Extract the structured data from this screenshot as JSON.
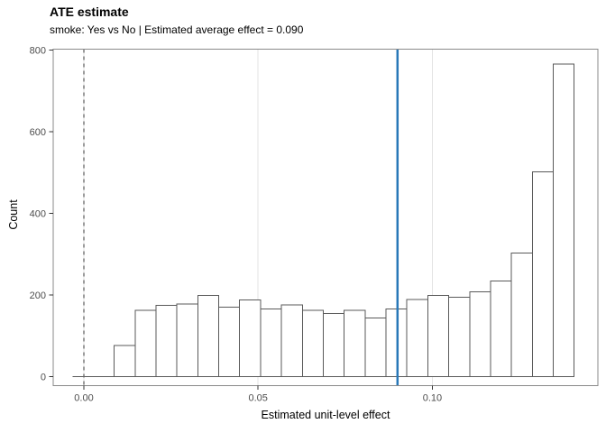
{
  "chart_data": {
    "type": "histogram",
    "title": "ATE estimate",
    "subtitle": "smoke: Yes vs No | Estimated average effect = 0.090",
    "xlabel": "Estimated unit-level effect",
    "ylabel": "Count",
    "comparison": "smoke: Yes vs No",
    "estimated_average_effect": 0.09,
    "x_ticks": {
      "values": [
        0.0,
        0.05,
        0.1
      ],
      "labels": [
        "0.00",
        "0.05",
        "0.10"
      ]
    },
    "y_ticks": {
      "values": [
        0,
        200,
        400,
        600,
        800
      ],
      "labels": [
        "0",
        "200",
        "400",
        "600",
        "800"
      ]
    },
    "x_domain": [
      -0.0088,
      0.1475
    ],
    "y_domain": [
      -22,
      802
    ],
    "bins": {
      "start": -0.0033,
      "width": 0.006
    },
    "counts": [
      0,
      0,
      76,
      163,
      175,
      178,
      199,
      170,
      188,
      166,
      176,
      162,
      155,
      163,
      144,
      166,
      189,
      199,
      194,
      208,
      234,
      303,
      502,
      766
    ],
    "reference_lines": [
      {
        "name": "zero",
        "x": 0.0,
        "style": "dashed",
        "color": "#666666"
      },
      {
        "name": "average-effect",
        "x": 0.09,
        "style": "solid",
        "color": "#2878b8"
      }
    ],
    "style": {
      "bar_fill": "#ffffff",
      "bar_stroke": "#5a5a5a",
      "gridline": "#e3e3e3",
      "panel_border": "#8a8a8a",
      "tick_color": "#333333",
      "tick_label_color": "#4d4d4d",
      "grid": "vertical-major-only",
      "legend": "none"
    }
  }
}
